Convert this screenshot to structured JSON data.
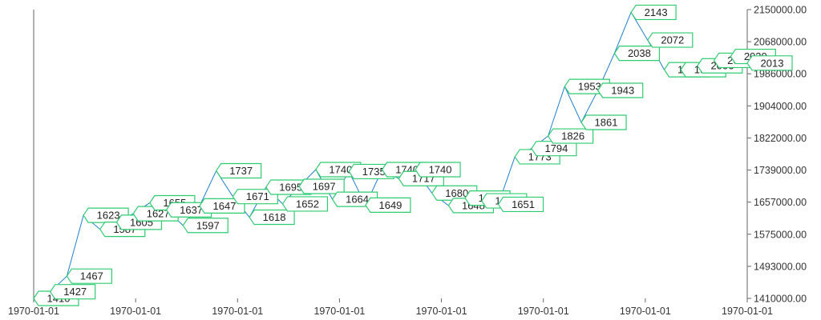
{
  "chart_data": {
    "type": "line",
    "title": "",
    "xlabel": "",
    "ylabel": "",
    "grid": false,
    "legend": "none",
    "colors": {
      "line": "#1f7fd1",
      "label_border": "#2ecc71",
      "axis": "#666666"
    },
    "x_tick_labels": [
      "1970-01-01",
      "1970-01-01",
      "1970-01-01",
      "1970-01-01",
      "1970-01-01",
      "1970-01-01",
      "1970-01-01",
      "1970-01-01"
    ],
    "y_tick_labels": [
      "1410000.00",
      "1493000.00",
      "1575000.00",
      "1657000.00",
      "1739000.00",
      "1822000.00",
      "1904000.00",
      "1986000.00",
      "2068000.00",
      "2150000.00"
    ],
    "ylim": [
      1410000,
      2150000
    ],
    "series": [
      {
        "values": [
          1410,
          1427,
          1467,
          1623,
          1587,
          1605,
          1627,
          1655,
          1637,
          1597,
          1647,
          1737,
          1671,
          1618,
          1695,
          1652,
          1697,
          1740,
          1664,
          1735,
          1649,
          1740,
          1717,
          1740,
          1680,
          1648,
          1667,
          1660,
          1651,
          1773,
          1794,
          1826,
          1953,
          1861,
          1943,
          2038,
          2143,
          2072,
          1996,
          1996,
          2006,
          2020,
          2030,
          2013
        ]
      }
    ]
  }
}
